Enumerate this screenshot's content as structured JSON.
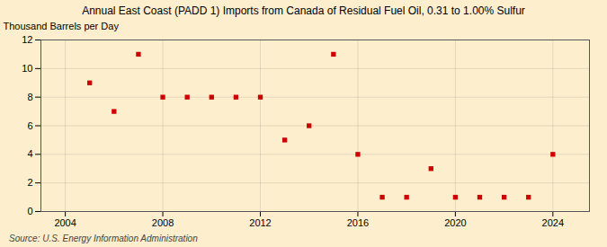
{
  "chart_data": {
    "type": "scatter",
    "title": "Annual East Coast (PADD 1) Imports from Canada of Residual Fuel Oil, 0.31 to 1.00% Sulfur",
    "ylabel": "Thousand Barrels per Day",
    "source": "Source: U.S. Energy Information Administration",
    "x": [
      2005,
      2006,
      2007,
      2008,
      2009,
      2010,
      2011,
      2012,
      2013,
      2014,
      2015,
      2016,
      2017,
      2018,
      2019,
      2020,
      2021,
      2022,
      2023,
      2024
    ],
    "values": [
      9,
      7,
      11,
      8,
      8,
      8,
      8,
      8,
      5,
      6,
      11,
      4,
      1,
      1,
      3,
      1,
      1,
      1,
      1,
      4
    ],
    "color": "#cc0000",
    "marker": "square",
    "xlim": [
      2003.0,
      2025.5
    ],
    "ylim": [
      0,
      12
    ],
    "xticks": [
      2004,
      2008,
      2012,
      2016,
      2020,
      2024
    ],
    "yticks": [
      0,
      2,
      4,
      6,
      8,
      10,
      12
    ],
    "grid": true
  }
}
